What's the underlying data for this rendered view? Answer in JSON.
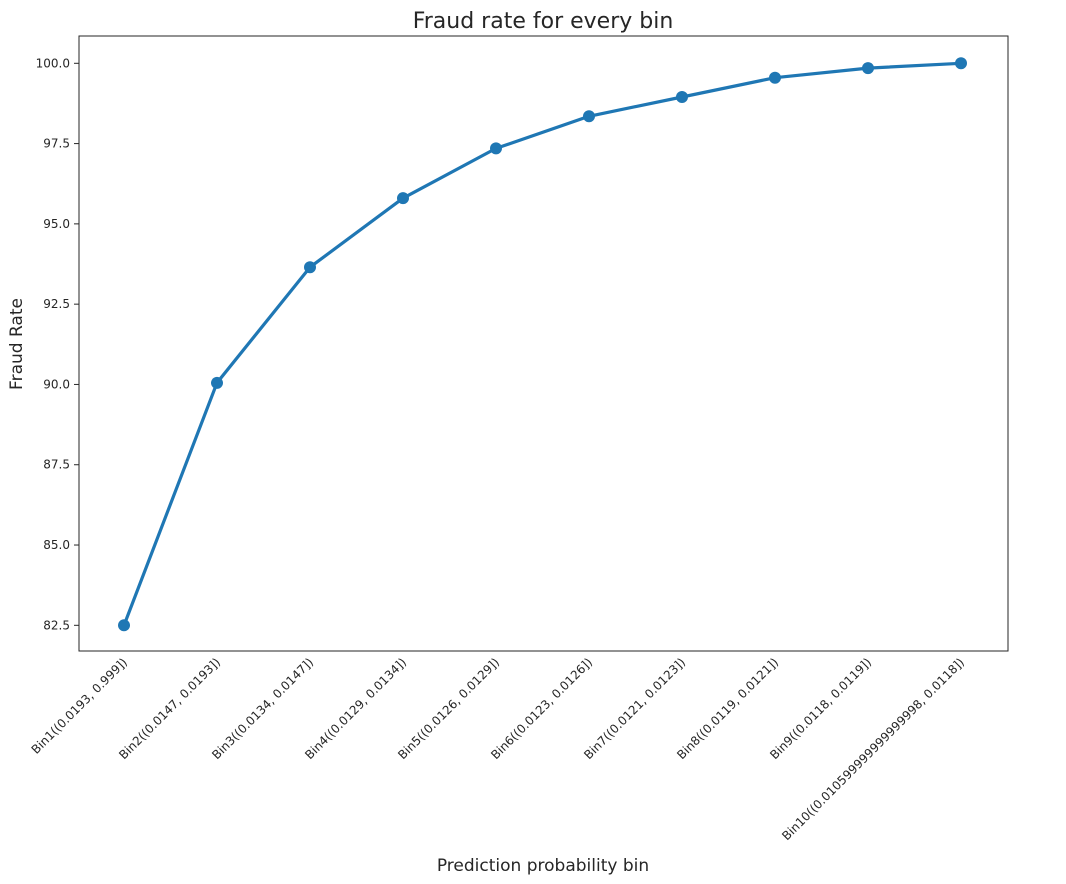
{
  "chart_data": {
    "type": "line",
    "title": "Fraud rate for every bin",
    "xlabel": "Prediction probability bin",
    "ylabel": "Fraud Rate",
    "categories": [
      "Bin1((0.0193, 0.999])",
      "Bin2((0.0147, 0.0193])",
      "Bin3((0.0134, 0.0147])",
      "Bin4((0.0129, 0.0134])",
      "Bin5((0.0126, 0.0129])",
      "Bin6((0.0123, 0.0126])",
      "Bin7((0.0121, 0.0123])",
      "Bin8((0.0119, 0.0121])",
      "Bin9((0.0118, 0.0119])",
      "Bin10((0.010599999999999998, 0.0118])"
    ],
    "values": [
      82.5,
      90.05,
      93.65,
      95.8,
      97.35,
      98.35,
      98.95,
      99.55,
      99.85,
      100.0
    ],
    "yticks": [
      "82.5",
      "85.0",
      "87.5",
      "90.0",
      "92.5",
      "95.0",
      "97.5",
      "100.0"
    ],
    "ylim": [
      81.7,
      100.85
    ],
    "grid": false,
    "color": "#1f77b4"
  }
}
